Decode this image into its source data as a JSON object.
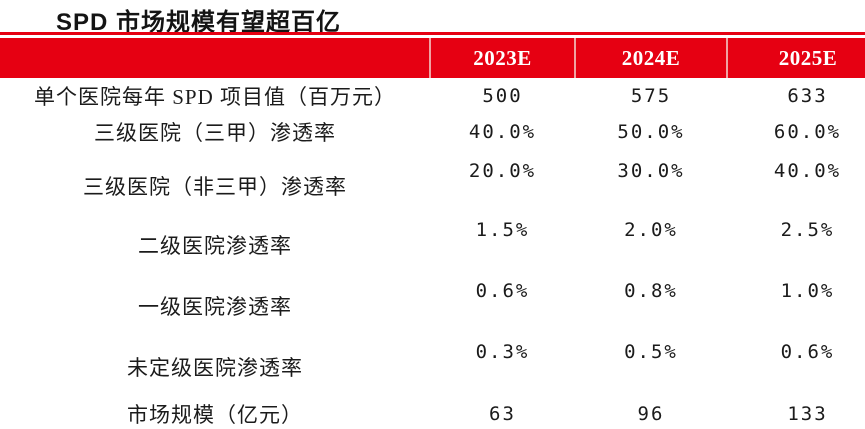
{
  "title": "SPD 市场规模有望超百亿",
  "colors": {
    "header_red": "#E60012",
    "header_separator": "#F0A3A3",
    "header_text": "#FFFFFF",
    "body_text": "#1B1B1B",
    "background": "#FFFFFF"
  },
  "chart_data": {
    "type": "table",
    "title": "SPD 市场规模有望超百亿",
    "columns": [
      "2023E",
      "2024E",
      "2025E"
    ],
    "corner_label": "",
    "rows": [
      {
        "label": "单个医院每年 SPD 项目值（百万元）",
        "values": [
          "500",
          "575",
          "633"
        ]
      },
      {
        "label": "三级医院（三甲）渗透率",
        "values": [
          "40.0%",
          "50.0%",
          "60.0%"
        ]
      },
      {
        "label": "三级医院（非三甲）渗透率",
        "values": [
          "20.0%",
          "30.0%",
          "40.0%"
        ]
      },
      {
        "label": "二级医院渗透率",
        "values": [
          "1.5%",
          "2.0%",
          "2.5%"
        ]
      },
      {
        "label": "一级医院渗透率",
        "values": [
          "0.6%",
          "0.8%",
          "1.0%"
        ]
      },
      {
        "label": "未定级医院渗透率",
        "values": [
          "0.3%",
          "0.5%",
          "0.6%"
        ]
      },
      {
        "label": "市场规模（亿元）",
        "values": [
          "63",
          "96",
          "133"
        ]
      }
    ]
  }
}
